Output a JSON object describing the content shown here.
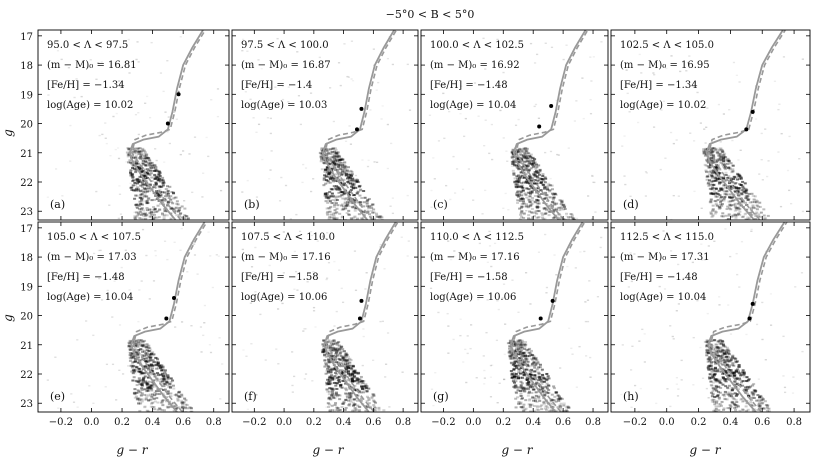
{
  "chart_data": {
    "type": "scatter",
    "title": "−5°0 < B < 5°0",
    "xlabel": "g − r",
    "ylabel": "g",
    "xlim": [
      -0.35,
      0.9
    ],
    "ylim": [
      23.3,
      16.8
    ],
    "y_inverted": true,
    "xticks": [
      -0.2,
      0.0,
      0.2,
      0.4,
      0.6,
      0.8
    ],
    "yticks": [
      17,
      18,
      19,
      20,
      21,
      22,
      23
    ],
    "xtick_labels": [
      "−0.2",
      "0.0",
      "0.2",
      "0.4",
      "0.6",
      "0.8"
    ],
    "ytick_labels": [
      "17",
      "18",
      "19",
      "20",
      "21",
      "22",
      "23"
    ],
    "grid": false,
    "background_color": "#ffffff",
    "density_color": "#000000",
    "isochrone_color": "#999999",
    "panels": [
      {
        "letter": "(a)",
        "range": "95.0 < Λ < 97.5",
        "dm": "(m − M)₀ = 16.81",
        "feh": "[Fe/H] = −1.34",
        "age": "log(Age) = 10.02",
        "dots": [
          [
            0.5,
            20.0
          ],
          [
            0.57,
            19.0
          ]
        ]
      },
      {
        "letter": "(b)",
        "range": "97.5 < Λ < 100.0",
        "dm": "(m − M)₀ = 16.87",
        "feh": "[Fe/H] = −1.4",
        "age": "log(Age) = 10.03",
        "dots": [
          [
            0.49,
            20.2
          ],
          [
            0.52,
            19.5
          ]
        ]
      },
      {
        "letter": "(c)",
        "range": "100.0 < Λ < 102.5",
        "dm": "(m − M)₀ = 16.92",
        "feh": "[Fe/H] = −1.48",
        "age": "log(Age) = 10.04",
        "dots": [
          [
            0.44,
            20.1
          ],
          [
            0.52,
            19.4
          ]
        ]
      },
      {
        "letter": "(d)",
        "range": "102.5 < Λ < 105.0",
        "dm": "(m − M)₀ = 16.95",
        "feh": "[Fe/H] = −1.34",
        "age": "log(Age) = 10.02",
        "dots": [
          [
            0.5,
            20.2
          ],
          [
            0.54,
            19.6
          ]
        ]
      },
      {
        "letter": "(e)",
        "range": "105.0 < Λ < 107.5",
        "dm": "(m − M)₀ = 17.03",
        "feh": "[Fe/H] = −1.48",
        "age": "log(Age) = 10.04",
        "dots": [
          [
            0.49,
            20.1
          ],
          [
            0.54,
            19.4
          ]
        ]
      },
      {
        "letter": "(f)",
        "range": "107.5 < Λ < 110.0",
        "dm": "(m − M)₀ = 17.16",
        "feh": "[Fe/H] = −1.58",
        "age": "log(Age) = 10.06",
        "dots": [
          [
            0.51,
            20.1
          ],
          [
            0.52,
            19.5
          ]
        ]
      },
      {
        "letter": "(g)",
        "range": "110.0 < Λ < 112.5",
        "dm": "(m − M)₀ = 17.16",
        "feh": "[Fe/H] = −1.58",
        "age": "log(Age) = 10.06",
        "dots": [
          [
            0.45,
            20.1
          ],
          [
            0.53,
            19.5
          ]
        ]
      },
      {
        "letter": "(h)",
        "range": "112.5 < Λ < 115.0",
        "dm": "(m − M)₀ = 17.31",
        "feh": "[Fe/H] = −1.48",
        "age": "log(Age) = 10.04",
        "dots": [
          [
            0.52,
            20.1
          ],
          [
            0.54,
            19.6
          ]
        ]
      }
    ]
  }
}
